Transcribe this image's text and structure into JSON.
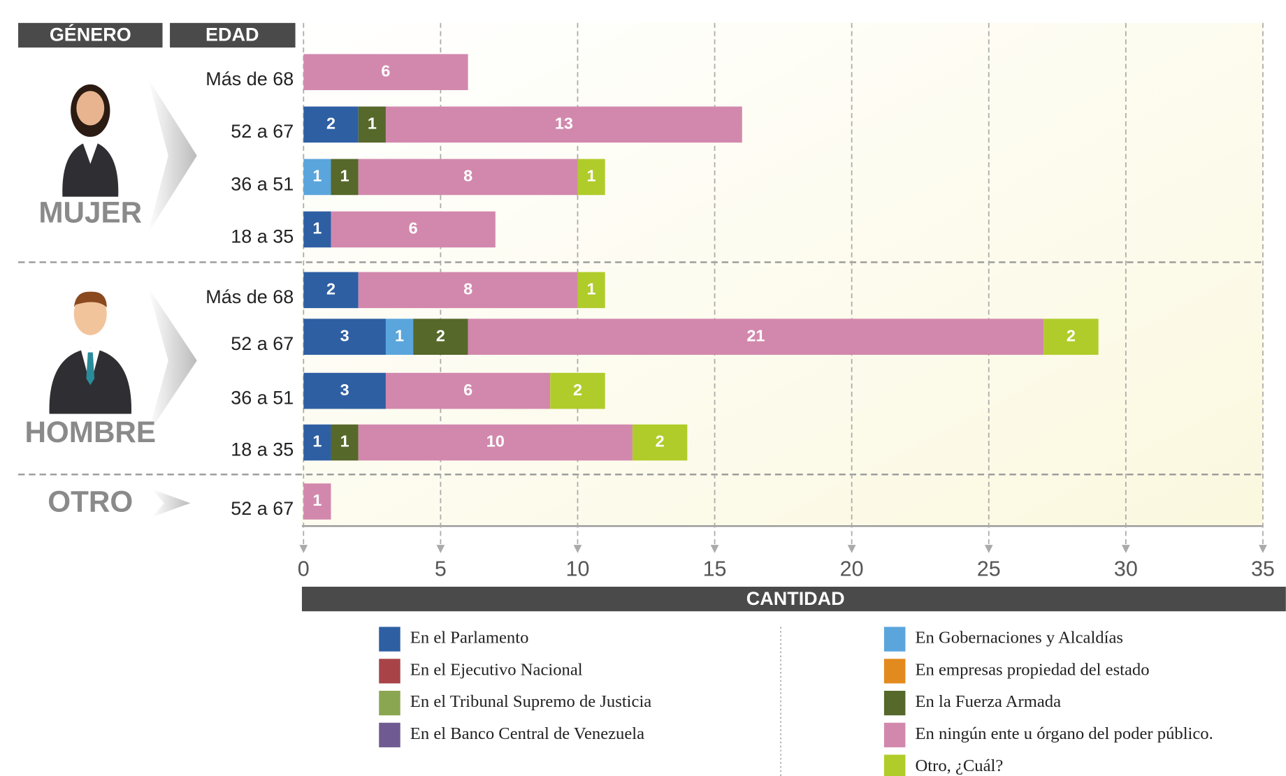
{
  "chart_data": {
    "type": "stacked-barh",
    "header": [
      "GÉNERO",
      "EDAD"
    ],
    "categories": [
      "Más de 68",
      "52 a 67",
      "36 a 51",
      "18 a 35",
      "Más de 68",
      "52 a 67",
      "36 a 51",
      "18 a 35",
      "52 a 67"
    ],
    "groups": [
      "MUJER",
      "MUJER",
      "MUJER",
      "MUJER",
      "HOMBRE",
      "HOMBRE",
      "HOMBRE",
      "HOMBRE",
      "OTRO"
    ],
    "xlabel": "CANTIDAD",
    "xlim": [
      0,
      35
    ],
    "xticks": [
      0,
      5,
      10,
      15,
      20,
      25,
      30,
      35
    ],
    "grid": true,
    "series": [
      {
        "name": "En el Parlamento",
        "color": "#2e5fa3",
        "values": [
          null,
          2,
          null,
          1,
          2,
          3,
          3,
          1,
          null
        ]
      },
      {
        "name": "En el Ejecutivo Nacional",
        "color": "#a84448",
        "values": [
          null,
          null,
          null,
          null,
          null,
          null,
          null,
          null,
          null
        ]
      },
      {
        "name": "En el Tribunal Supremo de Justicia",
        "color": "#8aa650",
        "values": [
          null,
          null,
          null,
          null,
          null,
          null,
          null,
          null,
          null
        ]
      },
      {
        "name": "En el Banco Central de Venezuela",
        "color": "#6f5a91",
        "values": [
          null,
          null,
          null,
          null,
          null,
          null,
          null,
          null,
          null
        ]
      },
      {
        "name": "En Gobernaciones y Alcaldías",
        "color": "#5aa5dc",
        "values": [
          null,
          null,
          1,
          null,
          null,
          1,
          null,
          null,
          null
        ]
      },
      {
        "name": "En empresas propiedad del estado",
        "color": "#e38a1e",
        "values": [
          null,
          null,
          null,
          null,
          null,
          null,
          null,
          null,
          null
        ]
      },
      {
        "name": "En la Fuerza Armada",
        "color": "#56682a",
        "values": [
          null,
          1,
          1,
          null,
          null,
          2,
          null,
          1,
          null
        ]
      },
      {
        "name": "En ningún ente u órgano del poder público.",
        "color": "#d288ad",
        "values": [
          6,
          13,
          8,
          6,
          8,
          21,
          6,
          10,
          1
        ]
      },
      {
        "name": "Otro, ¿Cuál?",
        "color": "#b0cc2a",
        "values": [
          null,
          null,
          1,
          null,
          1,
          2,
          2,
          2,
          null
        ]
      }
    ]
  }
}
